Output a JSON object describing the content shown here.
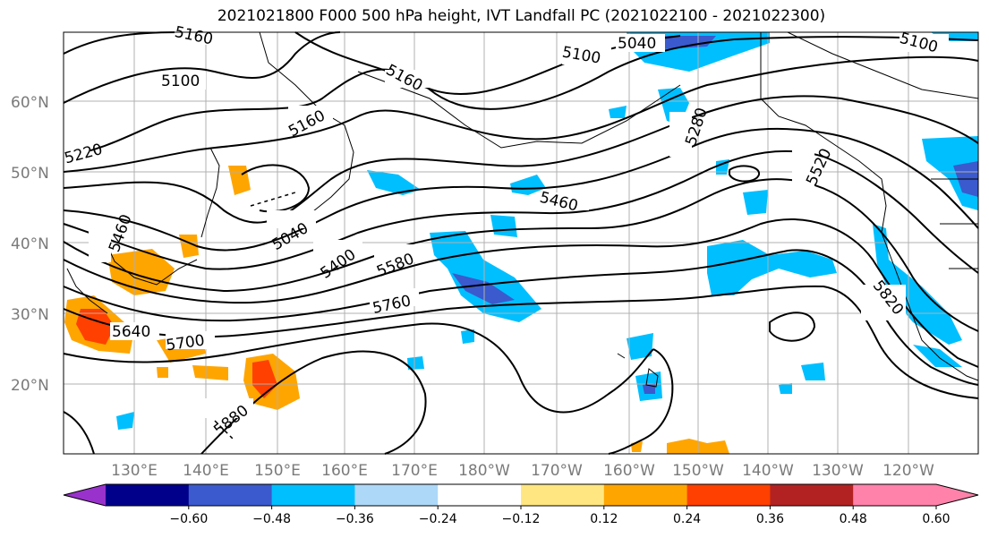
{
  "title": "2021021800 F000 500 hPa height, IVT Landfall PC (2021022100 - 2021022300)",
  "latitude_labels": [
    "60°N",
    "50°N",
    "40°N",
    "30°N",
    "20°N"
  ],
  "longitude_labels": [
    "130°E",
    "140°E",
    "150°E",
    "160°E",
    "170°E",
    "180°W",
    "170°W",
    "160°W",
    "150°W",
    "140°W",
    "130°W",
    "120°W"
  ],
  "contour_labels": [
    "5160",
    "5100",
    "5040",
    "5100",
    "5160",
    "5160",
    "5220",
    "5100",
    "5040",
    "5400",
    "5580",
    "5760",
    "5640",
    "5700",
    "5880",
    "5460",
    "5280",
    "5520",
    "5820",
    "5460"
  ],
  "colorbar": {
    "ticks": [
      "−0.60",
      "−0.48",
      "−0.36",
      "−0.24",
      "−0.12",
      "0.12",
      "0.24",
      "0.36",
      "0.48",
      "0.60"
    ],
    "colors": [
      "#9932cc",
      "#00008b",
      "#3a5acd",
      "#00bfff",
      "#add8f8",
      "#ffffff",
      "#ffe680",
      "#ffa500",
      "#ff4000",
      "#b22222",
      "#ff82ab",
      "#ff82ab"
    ]
  },
  "colors": {
    "negative_strong": "#3a5acd",
    "negative": "#00bfff",
    "negative_weak": "#add8f8",
    "positive_weak": "#ffe680",
    "positive": "#ffa500",
    "positive_strong": "#ff4000",
    "contour": "#000000",
    "grid": "#b0b0b0"
  }
}
